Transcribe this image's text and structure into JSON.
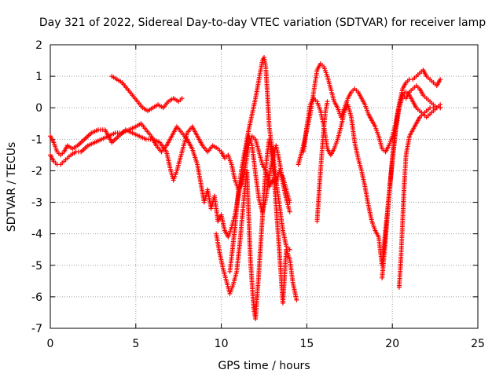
{
  "chart_data": {
    "type": "scatter",
    "title": "Day 321 of 2022, Sidereal Day-to-day VTEC variation (SDTVAR) for receiver lamp",
    "xlabel": "GPS time / hours",
    "ylabel": "SDTVAR / TECUs",
    "xlim": [
      0,
      25
    ],
    "ylim": [
      -7,
      2
    ],
    "xticks": [
      0,
      5,
      10,
      15,
      20,
      25
    ],
    "yticks": [
      -7,
      -6,
      -5,
      -4,
      -3,
      -2,
      -1,
      0,
      1,
      2
    ],
    "grid": true,
    "legend": "none",
    "marker": "+",
    "color": "#ff0000",
    "series": [
      {
        "x": [
          0.0,
          0.2,
          0.4,
          0.6,
          0.8,
          1.0,
          1.3,
          1.6,
          2.0,
          2.4,
          2.8,
          3.2,
          3.6,
          4.0,
          4.4,
          4.8,
          5.2,
          5.6,
          6.0,
          6.4,
          6.8,
          7.0,
          7.2,
          7.4,
          7.6,
          7.8,
          8.0,
          8.3,
          8.6,
          8.9,
          9.2,
          9.5,
          9.8,
          10.0,
          10.2,
          10.4,
          10.6,
          10.8,
          11.0,
          11.2,
          11.4,
          11.6,
          11.8,
          12.0,
          12.2,
          12.4,
          12.6,
          12.8,
          13.0,
          13.2,
          13.4,
          13.6,
          13.8,
          14.0
        ],
        "y": [
          -0.9,
          -1.1,
          -1.4,
          -1.5,
          -1.4,
          -1.2,
          -1.3,
          -1.2,
          -1.0,
          -0.8,
          -0.7,
          -0.7,
          -1.1,
          -0.9,
          -0.7,
          -0.8,
          -0.9,
          -1.0,
          -1.0,
          -1.1,
          -1.4,
          -1.9,
          -2.3,
          -2.0,
          -1.6,
          -1.2,
          -0.8,
          -0.6,
          -0.9,
          -1.2,
          -1.4,
          -1.2,
          -1.3,
          -1.4,
          -1.6,
          -1.5,
          -1.8,
          -2.3,
          -2.6,
          -2.4,
          -1.9,
          -1.2,
          -0.9,
          -1.0,
          -1.4,
          -1.8,
          -2.0,
          -2.5,
          -2.3,
          -2.4,
          -2.0,
          -2.2,
          -2.6,
          -3.0
        ]
      },
      {
        "x": [
          0.0,
          0.2,
          0.4,
          0.6,
          0.8,
          1.0,
          1.2,
          1.5,
          1.8,
          2.2,
          2.6,
          3.0,
          3.4,
          3.8,
          4.2,
          4.6,
          5.0,
          5.3,
          5.6,
          5.9,
          6.2,
          6.5,
          6.8,
          7.1,
          7.4,
          7.7,
          8.0,
          8.3,
          8.6,
          8.8,
          9.0,
          9.2,
          9.4,
          9.6,
          9.8,
          10.0,
          10.2,
          10.4,
          10.6,
          10.8,
          11.0,
          11.2,
          11.4,
          11.6,
          11.8,
          12.0,
          12.2,
          12.4,
          12.6,
          12.8,
          13.0,
          13.2,
          13.4,
          13.6,
          13.8,
          14.0
        ],
        "y": [
          -1.5,
          -1.7,
          -1.8,
          -1.8,
          -1.7,
          -1.6,
          -1.5,
          -1.4,
          -1.4,
          -1.2,
          -1.1,
          -1.0,
          -0.9,
          -0.8,
          -0.8,
          -0.7,
          -0.6,
          -0.5,
          -0.7,
          -0.9,
          -1.2,
          -1.4,
          -1.2,
          -0.9,
          -0.6,
          -0.8,
          -1.0,
          -1.3,
          -1.8,
          -2.4,
          -3.0,
          -2.6,
          -3.2,
          -2.8,
          -3.6,
          -3.4,
          -3.9,
          -4.1,
          -3.8,
          -3.4,
          -2.8,
          -2.2,
          -1.5,
          -0.9,
          -1.2,
          -2.1,
          -2.9,
          -3.3,
          -2.9,
          -2.2,
          -1.6,
          -1.2,
          -1.7,
          -2.4,
          -2.9,
          -3.3
        ]
      },
      {
        "x": [
          3.6,
          3.9,
          4.2,
          4.5,
          4.8,
          5.1,
          5.4,
          5.7,
          6.0,
          6.3,
          6.6,
          6.9,
          7.2,
          7.5,
          7.7
        ],
        "y": [
          1.0,
          0.9,
          0.8,
          0.6,
          0.4,
          0.2,
          0.0,
          -0.1,
          0.0,
          0.1,
          0.0,
          0.2,
          0.3,
          0.2,
          0.3
        ]
      },
      {
        "x": [
          9.7,
          9.9,
          10.1,
          10.3,
          10.5,
          10.7,
          10.9,
          11.1,
          11.3,
          11.5,
          11.7,
          11.9,
          12.0,
          12.2,
          12.4,
          12.6,
          12.8,
          13.0,
          13.2,
          13.4,
          13.6,
          13.8,
          14.0,
          14.2,
          14.4
        ],
        "y": [
          -4.0,
          -4.6,
          -5.1,
          -5.5,
          -5.9,
          -5.6,
          -5.2,
          -4.2,
          -3.0,
          -2.0,
          -4.8,
          -6.4,
          -6.7,
          -5.2,
          -3.5,
          -1.9,
          -1.0,
          -1.6,
          -3.1,
          -4.6,
          -6.2,
          -4.5,
          -4.8,
          -5.6,
          -6.1
        ]
      },
      {
        "x": [
          10.5,
          10.8,
          11.0,
          11.2,
          11.4,
          11.6,
          11.8,
          12.0,
          12.2,
          12.3,
          12.4,
          12.5,
          12.6,
          12.7,
          12.8,
          13.0,
          13.2,
          13.4,
          13.6,
          13.8,
          14.0
        ],
        "y": [
          -5.2,
          -3.8,
          -2.6,
          -1.9,
          -1.3,
          -0.7,
          -0.2,
          0.3,
          0.9,
          1.2,
          1.5,
          1.6,
          1.3,
          0.4,
          -0.6,
          -1.4,
          -2.3,
          -3.1,
          -3.9,
          -4.4,
          -4.5
        ]
      },
      {
        "x": [
          14.5,
          14.8,
          15.0,
          15.2,
          15.4,
          15.6,
          15.8,
          16.0,
          16.2,
          16.4,
          16.6,
          16.8,
          17.0,
          17.2,
          17.4,
          17.6,
          17.8,
          18.0,
          18.2,
          18.4,
          18.6,
          18.8,
          19.0,
          19.2,
          19.4,
          19.6,
          19.8,
          20.0,
          20.2,
          20.4,
          20.6,
          20.8,
          21.0,
          21.2,
          21.4,
          21.6,
          21.8,
          22.0,
          22.2,
          22.4,
          22.6,
          22.8
        ],
        "y": [
          -1.8,
          -1.2,
          -0.7,
          -0.2,
          0.5,
          1.2,
          1.4,
          1.3,
          1.0,
          0.6,
          0.2,
          0.0,
          -0.3,
          0.0,
          0.3,
          0.5,
          0.6,
          0.5,
          0.3,
          0.1,
          -0.2,
          -0.4,
          -0.6,
          -0.9,
          -1.3,
          -1.4,
          -1.2,
          -0.9,
          -0.5,
          0.1,
          0.6,
          0.8,
          0.9,
          0.9,
          1.0,
          1.1,
          1.2,
          1.0,
          0.9,
          0.8,
          0.7,
          0.9
        ]
      },
      {
        "x": [
          14.8,
          15.0,
          15.2,
          15.4,
          15.6,
          15.8,
          16.0,
          16.2,
          16.4,
          16.6,
          16.8,
          17.0,
          17.2,
          17.4,
          17.6,
          17.8,
          18.0,
          18.2,
          18.4,
          18.6,
          18.8,
          19.0,
          19.2,
          19.4,
          19.6,
          19.8,
          20.0,
          20.2,
          20.4,
          20.6,
          20.8,
          21.0,
          21.2,
          21.4,
          21.6,
          21.8,
          22.0,
          22.2,
          22.4,
          22.6,
          22.8
        ],
        "y": [
          -1.4,
          -0.6,
          0.1,
          0.3,
          0.2,
          -0.1,
          -0.6,
          -1.3,
          -1.5,
          -1.3,
          -1.0,
          -0.6,
          -0.1,
          0.1,
          -0.3,
          -1.1,
          -1.6,
          -2.0,
          -2.5,
          -3.1,
          -3.6,
          -3.9,
          -4.1,
          -5.0,
          -3.9,
          -2.8,
          -1.7,
          -0.7,
          0.0,
          0.4,
          0.3,
          0.5,
          0.6,
          0.7,
          0.6,
          0.4,
          0.3,
          0.2,
          0.1,
          0.0,
          0.0
        ]
      },
      {
        "x": [
          15.6,
          15.7,
          15.8,
          15.9,
          16.0,
          16.1,
          16.2
        ],
        "y": [
          -3.6,
          -2.8,
          -2.0,
          -1.3,
          -0.6,
          -0.1,
          0.2
        ]
      },
      {
        "x": [
          19.4,
          19.6,
          19.8,
          20.0,
          20.2,
          20.4,
          20.6,
          20.8,
          21.0,
          21.2,
          21.4,
          21.6,
          21.8,
          22.0,
          22.2,
          22.4,
          22.6,
          22.8
        ],
        "y": [
          -5.4,
          -4.2,
          -2.8,
          -1.6,
          -0.6,
          0.1,
          0.4,
          0.5,
          0.4,
          0.2,
          0.0,
          -0.1,
          -0.2,
          -0.3,
          -0.2,
          -0.1,
          0.0,
          0.1
        ]
      },
      {
        "x": [
          20.4,
          20.5,
          20.6,
          20.7,
          20.8,
          21.0,
          21.2,
          21.4,
          21.6,
          21.8,
          22.0,
          22.2,
          22.4,
          22.6,
          22.8
        ],
        "y": [
          -5.7,
          -4.8,
          -3.6,
          -2.4,
          -1.5,
          -0.9,
          -0.7,
          -0.5,
          -0.3,
          -0.2,
          -0.1,
          0.0,
          0.0,
          0.0,
          0.0
        ]
      }
    ]
  }
}
